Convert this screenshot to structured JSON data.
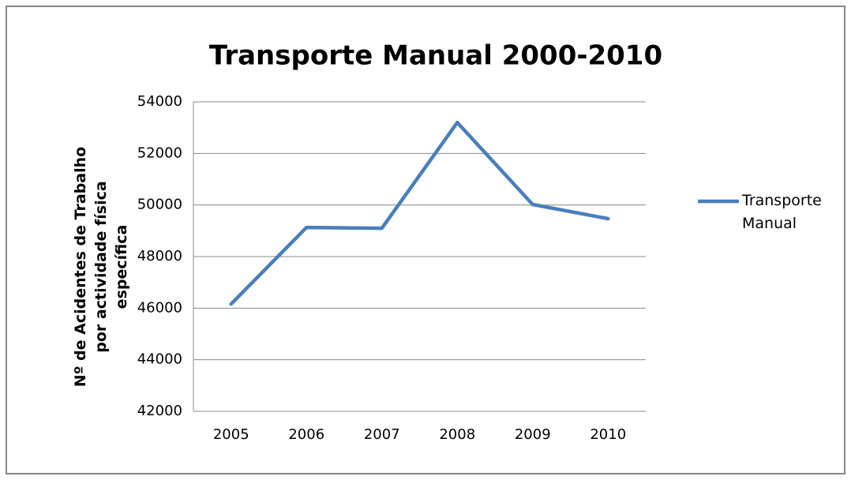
{
  "chart_data": {
    "type": "line",
    "title": "Transporte Manual 2000-2010",
    "y_label": "Nº de Acidentes de Trabalho por actividade física específica",
    "categories": [
      "2005",
      "2006",
      "2007",
      "2008",
      "2009",
      "2010"
    ],
    "series": [
      {
        "name": "Transporte Manual",
        "color": "#4a7ebb",
        "values": [
          46160,
          49130,
          49100,
          53200,
          50020,
          49470
        ]
      }
    ],
    "ylim": [
      42000,
      54000
    ],
    "yticks": [
      42000,
      44000,
      46000,
      48000,
      50000,
      52000,
      54000
    ],
    "grid": true,
    "legend": "right"
  }
}
